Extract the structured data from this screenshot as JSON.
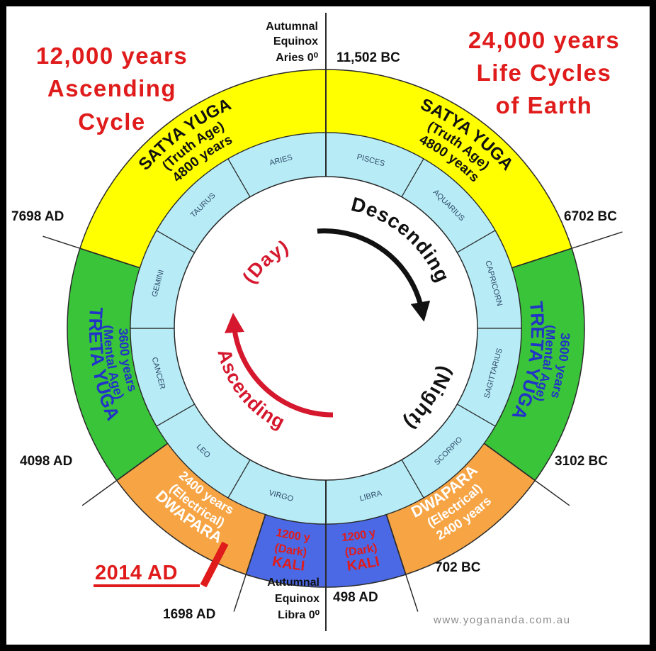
{
  "titles": {
    "left": [
      "12,000 years",
      "Ascending",
      "Cycle"
    ],
    "right": [
      "24,000 years",
      "Life Cycles",
      "of Earth"
    ]
  },
  "yugas": {
    "satya_left": [
      "SATYA YUGA",
      "(Truth Age)",
      "4800 years"
    ],
    "satya_right": [
      "SATYA YUGA",
      "(Truth Age)",
      "4800 years"
    ],
    "treta_left": [
      "TRETA YUGA",
      "(Mental Age)",
      "3600 years"
    ],
    "treta_right": [
      "TRETA YUGA",
      "(Mental Age)",
      "3600 years"
    ],
    "dwapara_left": [
      "DWAPARA",
      "(Electrical)",
      "2400 years"
    ],
    "dwapara_right": [
      "DWAPARA",
      "(Electrical)",
      "2400 years"
    ],
    "kali_left": [
      "KALI",
      "(Dark)",
      "1200 y"
    ],
    "kali_right": [
      "KALI",
      "(Dark)",
      "1200 y"
    ]
  },
  "zodiac": [
    "PISCES",
    "AQUARIUS",
    "CAPRICORN",
    "SAGITTARIUS",
    "SCORPIO",
    "LIBRA",
    "VIRGO",
    "LEO",
    "CANCER",
    "GEMINI",
    "TAURUS",
    "ARIES"
  ],
  "cycle_labels": {
    "descending": "Descending",
    "night": "(Night)",
    "ascending": "Ascending",
    "day": "(Day)"
  },
  "dates": {
    "top": "11,502 BC",
    "upper_right": "6702 BC",
    "upper_left": "7698 AD",
    "lower_left": "4098 AD",
    "lower_right": "3102 BC",
    "bottom_right_kali": "702 BC",
    "bottom": "498 AD",
    "bottom_left": "1698 AD",
    "current": "2014 AD"
  },
  "equinox_top": [
    "Autumnal",
    "Equinox",
    "Aries 0⁰"
  ],
  "equinox_bottom": [
    "Autumnal",
    "Equinox",
    "Libra 0⁰"
  ],
  "credit": "www.yogananda.com.au",
  "colors": {
    "satya": "#ffff00",
    "treta": "#3ac43a",
    "dwapara": "#f6a444",
    "kali": "#4b69e4",
    "zodiac_ring": "#b7ecf6",
    "title_red": "#e01b1b",
    "treta_text": "#2133c8",
    "dwapara_text": "#ffffff",
    "kali_text": "#e01b1b"
  }
}
